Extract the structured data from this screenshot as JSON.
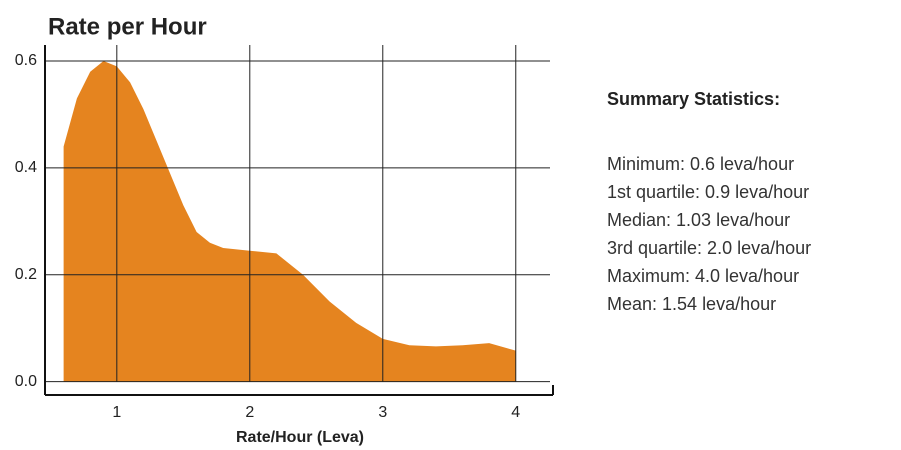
{
  "chart_data": {
    "type": "area",
    "title": "Rate per Hour",
    "xlabel": "Rate/Hour (Leva)",
    "x": [
      0.6,
      0.7,
      0.8,
      0.9,
      1.0,
      1.1,
      1.2,
      1.3,
      1.4,
      1.5,
      1.6,
      1.7,
      1.8,
      2.0,
      2.2,
      2.4,
      2.6,
      2.8,
      3.0,
      3.2,
      3.4,
      3.6,
      3.8,
      4.0
    ],
    "values": [
      0.44,
      0.53,
      0.58,
      0.6,
      0.59,
      0.56,
      0.51,
      0.45,
      0.39,
      0.33,
      0.28,
      0.26,
      0.25,
      0.245,
      0.24,
      0.2,
      0.15,
      0.11,
      0.08,
      0.068,
      0.066,
      0.068,
      0.072,
      0.058
    ],
    "color": "#e5841f",
    "xlim": [
      0.46,
      4.28
    ],
    "ylim": [
      -0.025,
      0.63
    ],
    "xticks": [
      1,
      2,
      3,
      4
    ],
    "yticks": [
      {
        "value": 0,
        "label": "0.0"
      },
      0.2,
      0.4,
      0.6
    ],
    "grid": true
  },
  "summary": {
    "title": "Summary Statistics:",
    "items": [
      "Minimum: 0.6 leva/hour",
      "1st quartile: 0.9 leva/hour",
      "Median: 1.03 leva/hour",
      "3rd quartile: 2.0 leva/hour",
      "Maximum: 4.0 leva/hour",
      "Mean: 1.54 leva/hour"
    ]
  }
}
